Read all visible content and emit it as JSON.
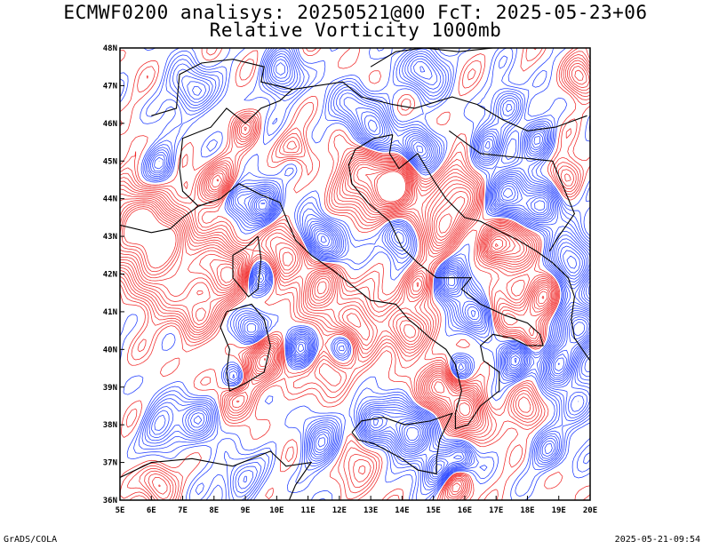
{
  "title_line1": "ECMWF0200 analisys: 20250521@00 FcT: 2025-05-23+06",
  "title_line2": "Relative Vorticity 1000mb",
  "footer_left": "GrADS/COLA",
  "footer_right": "2025-05-21-09:54",
  "map": {
    "lon_range": [
      5,
      20
    ],
    "lat_range": [
      36,
      48
    ],
    "lon_ticks": [
      "5E",
      "6E",
      "7E",
      "8E",
      "9E",
      "10E",
      "11E",
      "12E",
      "13E",
      "14E",
      "15E",
      "16E",
      "17E",
      "18E",
      "19E",
      "20E"
    ],
    "lat_ticks": [
      "36N",
      "37N",
      "38N",
      "39N",
      "40N",
      "41N",
      "42N",
      "43N",
      "44N",
      "45N",
      "46N",
      "47N",
      "48N"
    ],
    "colors": {
      "positive_vorticity": "#f02828",
      "negative_vorticity": "#1e3cff",
      "coastline": "#000000",
      "frame": "#000000"
    }
  }
}
